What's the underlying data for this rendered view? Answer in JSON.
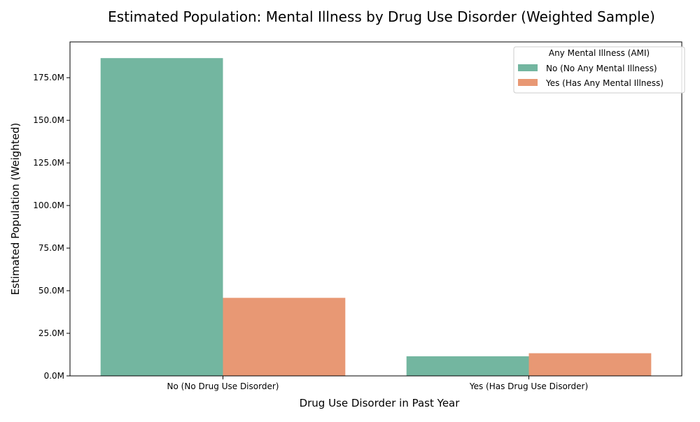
{
  "chart_data": {
    "type": "bar",
    "title": "Estimated Population: Mental Illness by Drug Use Disorder (Weighted Sample)",
    "xlabel": "Drug Use Disorder in Past Year",
    "ylabel": "Estimated Population (Weighted)",
    "categories": [
      "No (No Drug Use Disorder)",
      "Yes (Has Drug Use Disorder)"
    ],
    "series": [
      {
        "name": "No (No Any Mental Illness)",
        "color": "#73b6a0",
        "values": [
          186.5,
          11.5
        ]
      },
      {
        "name": "Yes (Has Any Mental Illness)",
        "color": "#e89874",
        "values": [
          45.8,
          13.3
        ]
      }
    ],
    "value_unit": "M",
    "ylim": [
      0,
      196
    ],
    "yticks": [
      0,
      25,
      50,
      75,
      100,
      125,
      150,
      175
    ],
    "ytick_labels": [
      "0.0M",
      "25.0M",
      "50.0M",
      "75.0M",
      "100.0M",
      "125.0M",
      "150.0M",
      "175.0M"
    ],
    "legend": {
      "title": "Any Mental Illness (AMI)",
      "position": "top-right"
    },
    "grid": false
  }
}
